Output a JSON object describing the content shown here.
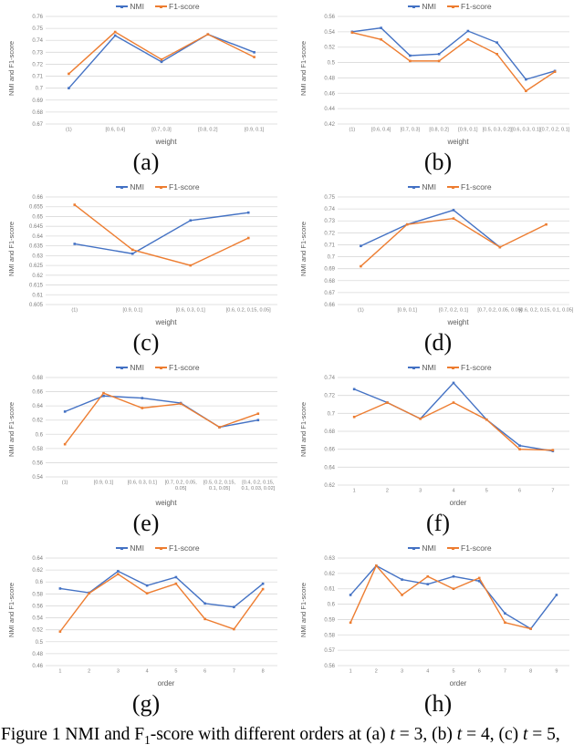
{
  "caption": {
    "part1": "Figure 1 NMI and F",
    "sub": "1",
    "part2": "-score with different orders at (a) ",
    "t_var": "t",
    "part3": " = 3, (b) ",
    "part4": " = 4, (c) ",
    "part5": " = 5,"
  },
  "colors": {
    "nmi": "#4472C4",
    "f1": "#ED7D31",
    "gridline": "#D9D9D9",
    "tick_text": "#808080",
    "axis_label_text": "#595959"
  },
  "chart_data": [
    {
      "id": "a",
      "label": "(a)",
      "type": "line",
      "legend_position": "top",
      "grid": "horizontal",
      "xlabel": "weight",
      "ylabel": "NMI and F1-score",
      "categories": [
        "(1)",
        "[0.6, 0.4]",
        "[0.7, 0.3]",
        "[0.8, 0.2]",
        "[0.9, 0.1]"
      ],
      "ylim": [
        0.67,
        0.76
      ],
      "yticks": [
        "0.67",
        "0.68",
        "0.69",
        "0.7",
        "0.71",
        "0.72",
        "0.73",
        "0.74",
        "0.75",
        "0.76"
      ],
      "series": [
        {
          "name": "NMI",
          "color": "#4472C4",
          "values": [
            0.7,
            0.744,
            0.722,
            0.745,
            0.73
          ]
        },
        {
          "name": "F1-score",
          "color": "#ED7D31",
          "values": [
            0.712,
            0.747,
            0.724,
            0.745,
            0.726
          ]
        }
      ]
    },
    {
      "id": "b",
      "label": "(b)",
      "type": "line",
      "legend_position": "top",
      "grid": "horizontal",
      "xlabel": "weight",
      "ylabel": "NMI and F1-score",
      "categories": [
        "(1)",
        "[0.6, 0.4]",
        "[0.7, 0.3]",
        "[0.8, 0.2]",
        "[0.9, 0.1]",
        "[0.5, 0.3, 0.2]",
        "[0.6, 0.3, 0.1]",
        "[0.7, 0.2, 0.1]"
      ],
      "ylim": [
        0.42,
        0.56
      ],
      "yticks": [
        "0.42",
        "0.44",
        "0.46",
        "0.48",
        "0.5",
        "0.52",
        "0.54",
        "0.56"
      ],
      "series": [
        {
          "name": "NMI",
          "color": "#4472C4",
          "values": [
            0.54,
            0.545,
            0.509,
            0.511,
            0.541,
            0.526,
            0.478,
            0.489
          ]
        },
        {
          "name": "F1-score",
          "color": "#ED7D31",
          "values": [
            0.539,
            0.53,
            0.502,
            0.502,
            0.53,
            0.511,
            0.463,
            0.488
          ]
        }
      ]
    },
    {
      "id": "c",
      "label": "(c)",
      "type": "line",
      "legend_position": "top",
      "grid": "horizontal",
      "xlabel": "weight",
      "ylabel": "NMI and F1-score",
      "categories": [
        "(1)",
        "[0.9, 0.1]",
        "[0.6, 0.3, 0.1]",
        "[0.6, 0.2, 0.15, 0.05]"
      ],
      "ylim": [
        0.605,
        0.66
      ],
      "yticks": [
        "0.605",
        "0.61",
        "0.615",
        "0.62",
        "0.625",
        "0.63",
        "0.635",
        "0.64",
        "0.645",
        "0.65",
        "0.655",
        "0.66"
      ],
      "series": [
        {
          "name": "NMI",
          "color": "#4472C4",
          "values": [
            0.636,
            0.631,
            0.648,
            0.652
          ]
        },
        {
          "name": "F1-score",
          "color": "#ED7D31",
          "values": [
            0.656,
            0.633,
            0.625,
            0.639
          ]
        }
      ]
    },
    {
      "id": "d",
      "label": "(d)",
      "type": "line",
      "legend_position": "top",
      "grid": "horizontal",
      "xlabel": "weight",
      "ylabel": "NMI and F1-score",
      "categories": [
        "(1)",
        "[0.9, 0.1]",
        "[0.7, 0.2, 0.1]",
        "[0.7, 0.2, 0.05, 0.05]",
        "[0.6, 0.2, 0.15, 0.1, 0.05]"
      ],
      "ylim": [
        0.66,
        0.75
      ],
      "yticks": [
        "0.66",
        "0.67",
        "0.68",
        "0.69",
        "0.7",
        "0.71",
        "0.72",
        "0.73",
        "0.74",
        "0.75"
      ],
      "series": [
        {
          "name": "NMI",
          "color": "#4472C4",
          "values": [
            0.709,
            0.727,
            0.739,
            0.708,
            null
          ]
        },
        {
          "name": "F1-score",
          "color": "#ED7D31",
          "values": [
            0.692,
            0.727,
            0.732,
            0.708,
            0.727
          ]
        }
      ]
    },
    {
      "id": "e",
      "label": "(e)",
      "type": "line",
      "legend_position": "top",
      "grid": "horizontal",
      "xlabel": "weight",
      "ylabel": "NMI and F1-score",
      "categories": [
        "(1)",
        "[0.9, 0.1]",
        "[0.6, 0.3, 0.1]",
        "[0.7, 0.2, 0.05,\n0.05]",
        "[0.5, 0.2, 0.15,\n0.1, 0.05]",
        "[0.4, 0.2, 0.15,\n0.1, 0.03, 0.02]"
      ],
      "ylim": [
        0.54,
        0.68
      ],
      "yticks": [
        "0.54",
        "0.56",
        "0.58",
        "0.6",
        "0.62",
        "0.64",
        "0.66",
        "0.68"
      ],
      "series": [
        {
          "name": "NMI",
          "color": "#4472C4",
          "values": [
            0.632,
            0.654,
            0.651,
            0.644,
            0.61,
            0.62
          ]
        },
        {
          "name": "F1-score",
          "color": "#ED7D31",
          "values": [
            0.586,
            0.658,
            0.637,
            0.643,
            0.61,
            0.629
          ]
        }
      ]
    },
    {
      "id": "f",
      "label": "(f)",
      "type": "line",
      "legend_position": "top",
      "grid": "horizontal",
      "xlabel": "order",
      "ylabel": "NMI and F1-score",
      "categories": [
        "1",
        "2",
        "3",
        "4",
        "5",
        "6",
        "7"
      ],
      "ylim": [
        0.62,
        0.74
      ],
      "yticks": [
        "0.62",
        "0.64",
        "0.66",
        "0.68",
        "0.7",
        "0.72",
        "0.74"
      ],
      "series": [
        {
          "name": "NMI",
          "color": "#4472C4",
          "values": [
            0.727,
            0.712,
            0.694,
            0.734,
            0.693,
            0.664,
            0.658
          ]
        },
        {
          "name": "F1-score",
          "color": "#ED7D31",
          "values": [
            0.696,
            0.712,
            0.694,
            0.712,
            0.693,
            0.66,
            0.659
          ]
        }
      ]
    },
    {
      "id": "g",
      "label": "(g)",
      "type": "line",
      "legend_position": "top",
      "grid": "horizontal",
      "xlabel": "order",
      "ylabel": "NMI and F1-score",
      "categories": [
        "1",
        "2",
        "3",
        "4",
        "5",
        "6",
        "7",
        "8"
      ],
      "ylim": [
        0.46,
        0.64
      ],
      "yticks": [
        "0.46",
        "0.48",
        "0.5",
        "0.52",
        "0.54",
        "0.56",
        "0.58",
        "0.6",
        "0.62",
        "0.64"
      ],
      "series": [
        {
          "name": "NMI",
          "color": "#4472C4",
          "values": [
            0.589,
            0.582,
            0.618,
            0.594,
            0.608,
            0.564,
            0.558,
            0.597
          ]
        },
        {
          "name": "F1-score",
          "color": "#ED7D31",
          "values": [
            0.517,
            0.581,
            0.613,
            0.581,
            0.597,
            0.538,
            0.521,
            0.588
          ]
        }
      ]
    },
    {
      "id": "h",
      "label": "(h)",
      "type": "line",
      "legend_position": "top",
      "grid": "horizontal",
      "xlabel": "order",
      "ylabel": "NMI and F1-score",
      "categories": [
        "1",
        "2",
        "3",
        "4",
        "5",
        "6",
        "7",
        "8",
        "9"
      ],
      "ylim": [
        0.56,
        0.63
      ],
      "yticks": [
        "0.56",
        "0.57",
        "0.58",
        "0.59",
        "0.6",
        "0.61",
        "0.62",
        "0.63"
      ],
      "series": [
        {
          "name": "NMI",
          "color": "#4472C4",
          "values": [
            0.606,
            0.625,
            0.616,
            0.613,
            0.618,
            0.615,
            0.594,
            0.584,
            0.606
          ]
        },
        {
          "name": "F1-score",
          "color": "#ED7D31",
          "values": [
            0.588,
            0.625,
            0.606,
            0.618,
            0.61,
            0.617,
            0.588,
            0.584,
            null
          ]
        }
      ]
    }
  ]
}
